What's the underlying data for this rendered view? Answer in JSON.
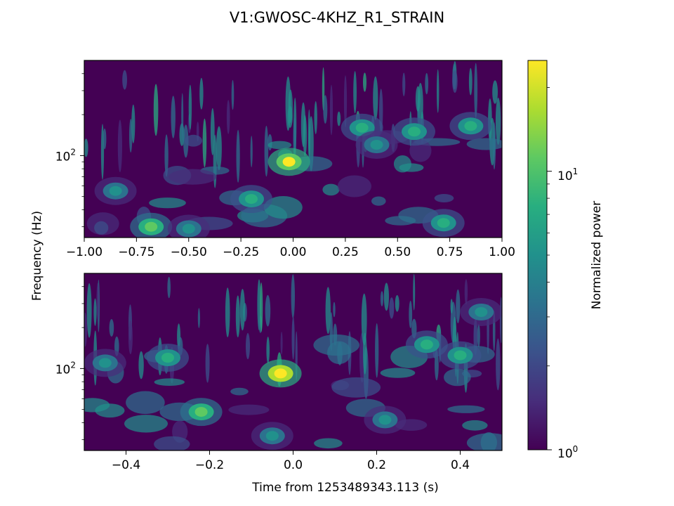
{
  "title": "V1:GWOSC-4KHZ_R1_STRAIN",
  "ylabel": "Frequency (Hz)",
  "xlabel": "Time from 1253489343.113 (s)",
  "colorbar": {
    "label": "Normalized power",
    "scale": "log",
    "range": [
      1,
      25
    ],
    "colormap": "viridis",
    "tick_labels": [
      "10",
      "1",
      "10",
      "0"
    ],
    "ticks": [
      {
        "base": "10",
        "exp": "1",
        "value": 10
      },
      {
        "base": "10",
        "exp": "0",
        "value": 1
      }
    ]
  },
  "chart_data": [
    {
      "type": "heatmap",
      "name": "top",
      "xlim": [
        -1.0,
        1.0
      ],
      "ylim": [
        25,
        500
      ],
      "yscale": "log",
      "x_ticks": [
        -1.0,
        -0.75,
        -0.5,
        -0.25,
        0.0,
        0.25,
        0.5,
        0.75,
        1.0
      ],
      "x_tick_labels": [
        "−1.00",
        "−0.75",
        "−0.50",
        "−0.25",
        "0.00",
        "0.25",
        "0.50",
        "0.75",
        "1.00"
      ],
      "y_ticks": [
        {
          "base": "10",
          "exp": "2",
          "value": 100
        }
      ],
      "hotspots": [
        {
          "t": -0.02,
          "f": 90,
          "power": 22
        },
        {
          "t": -0.68,
          "f": 30,
          "power": 13
        },
        {
          "t": -0.2,
          "f": 48,
          "power": 8
        },
        {
          "t": 0.33,
          "f": 160,
          "power": 8
        },
        {
          "t": 0.58,
          "f": 150,
          "power": 9
        },
        {
          "t": 0.85,
          "f": 165,
          "power": 7
        },
        {
          "t": 0.72,
          "f": 32,
          "power": 7
        },
        {
          "t": -0.5,
          "f": 29,
          "power": 6
        },
        {
          "t": 0.4,
          "f": 120,
          "power": 6
        },
        {
          "t": -0.85,
          "f": 55,
          "power": 5
        }
      ]
    },
    {
      "type": "heatmap",
      "name": "bottom",
      "xlim": [
        -0.5,
        0.5
      ],
      "ylim": [
        25,
        500
      ],
      "yscale": "log",
      "x_ticks": [
        -0.4,
        -0.2,
        0.0,
        0.2,
        0.4
      ],
      "x_tick_labels": [
        "−0.4",
        "−0.2",
        "0.0",
        "0.2",
        "0.4"
      ],
      "y_ticks": [
        {
          "base": "10",
          "exp": "2",
          "value": 100
        }
      ],
      "hotspots": [
        {
          "t": -0.03,
          "f": 92,
          "power": 23
        },
        {
          "t": -0.22,
          "f": 48,
          "power": 11
        },
        {
          "t": 0.32,
          "f": 150,
          "power": 8
        },
        {
          "t": 0.4,
          "f": 125,
          "power": 8
        },
        {
          "t": -0.3,
          "f": 120,
          "power": 7
        },
        {
          "t": -0.45,
          "f": 110,
          "power": 5
        },
        {
          "t": 0.22,
          "f": 42,
          "power": 5
        },
        {
          "t": -0.05,
          "f": 32,
          "power": 5
        },
        {
          "t": 0.45,
          "f": 260,
          "power": 6
        }
      ]
    }
  ]
}
